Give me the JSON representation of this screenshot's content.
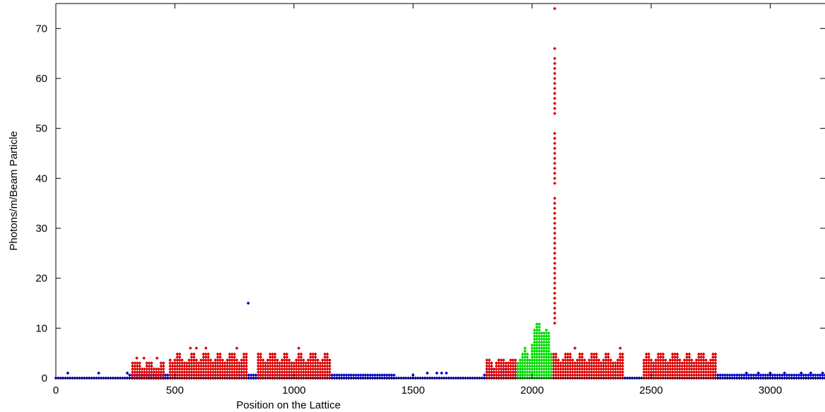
{
  "chart_data": {
    "type": "scatter",
    "title": "",
    "xlabel": "Position on the Lattice",
    "ylabel": "Photons/m/Beam Particle",
    "xlim": [
      0,
      3230
    ],
    "ylim": [
      0,
      75
    ],
    "xticks": [
      0,
      500,
      1000,
      1500,
      2000,
      2500,
      3000
    ],
    "yticks": [
      0,
      10,
      20,
      30,
      40,
      50,
      60,
      70
    ],
    "legend": "none",
    "series": [
      {
        "color": "#0000cc",
        "regions": [
          {
            "x": [
              0,
              3230
            ],
            "ymax": 0.15
          },
          {
            "x": [
              310,
              1160
            ],
            "ymax": 1
          },
          {
            "x": [
              1160,
              1420
            ],
            "ymax": 1
          },
          {
            "x": [
              1800,
              1960
            ],
            "ymax": 2
          },
          {
            "x": [
              2760,
              3230
            ],
            "ymax": 1
          }
        ],
        "points": [
          [
            50,
            1
          ],
          [
            180,
            1
          ],
          [
            300,
            1
          ],
          [
            808,
            15
          ],
          [
            1500,
            0.6
          ],
          [
            1560,
            1
          ],
          [
            1600,
            1
          ],
          [
            1620,
            1
          ],
          [
            1640,
            1
          ],
          [
            2900,
            1
          ],
          [
            2950,
            1
          ],
          [
            3000,
            1
          ],
          [
            3060,
            1
          ],
          [
            3130,
            1
          ],
          [
            3170,
            1
          ],
          [
            3220,
            1
          ]
        ]
      },
      {
        "color": "#dd0000",
        "regions": [
          {
            "x": [
              322,
              460
            ],
            "ymax": 3
          },
          {
            "x": [
              480,
              800
            ],
            "ymax": 5
          },
          {
            "x": [
              850,
              1150
            ],
            "ymax": 5
          },
          {
            "x": [
              1810,
              1930
            ],
            "ymax": 4
          },
          {
            "x": [
              2090,
              2380
            ],
            "ymax": 5
          },
          {
            "x": [
              2470,
              2770
            ],
            "ymax": 5
          }
        ],
        "points": [
          [
            340,
            4
          ],
          [
            370,
            4
          ],
          [
            425,
            4
          ],
          [
            565,
            6
          ],
          [
            590,
            6
          ],
          [
            630,
            6
          ],
          [
            760,
            6
          ],
          [
            1020,
            6
          ],
          [
            2180,
            6
          ],
          [
            2370,
            6
          ]
        ],
        "spike": {
          "x": 2095,
          "y": [
            11,
            12,
            13,
            14,
            15,
            16,
            17,
            18,
            19,
            20,
            21,
            22,
            23,
            24,
            25,
            26,
            27,
            28,
            29,
            30,
            31,
            32,
            33,
            34,
            35,
            36,
            39,
            40,
            41,
            42,
            43,
            44,
            45,
            46,
            47,
            48,
            49,
            53,
            54,
            55,
            56,
            57,
            58,
            59,
            60,
            61,
            62,
            63,
            64,
            66,
            74
          ]
        }
      },
      {
        "color": "#00dd00",
        "regions": [
          {
            "x": [
              1940,
              2085
            ],
            "ymax": 10,
            "peak_x": 2055,
            "peak_y": 14
          }
        ],
        "points": []
      }
    ]
  }
}
